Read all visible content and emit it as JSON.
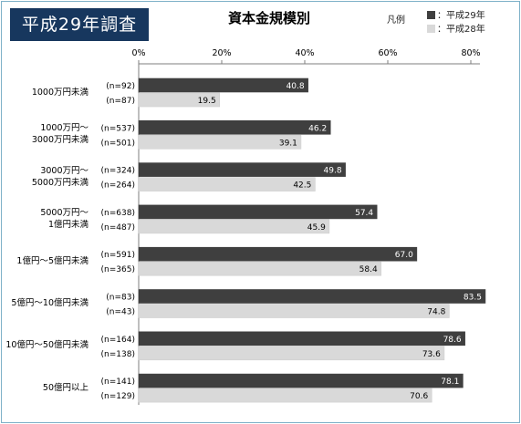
{
  "badge": "平成29年調査",
  "legend": {
    "title": "凡例",
    "items": [
      {
        "label": "：平成29年",
        "color": "#3f3f3f"
      },
      {
        "label": "：平成28年",
        "color": "#d9d9d9"
      }
    ]
  },
  "chart_data": {
    "type": "bar",
    "orientation": "horizontal",
    "title": "資本金規模別",
    "xlim": [
      0,
      80
    ],
    "ticks": [
      "0%",
      "20%",
      "40%",
      "60%",
      "80%"
    ],
    "tick_values": [
      0,
      20,
      40,
      60,
      80
    ],
    "grid": false,
    "legend_position": "top-right",
    "categories": [
      [
        "1000万円未満"
      ],
      [
        "1000万円～",
        "3000万円未満"
      ],
      [
        "3000万円～",
        "5000万円未満"
      ],
      [
        "5000万円～",
        "1億円未満"
      ],
      [
        "1億円～5億円未満"
      ],
      [
        "5億円～10億円未満"
      ],
      [
        "10億円～50億円未満"
      ],
      [
        "50億円以上"
      ]
    ],
    "series": [
      {
        "name": "平成29年",
        "color": "#3f3f3f",
        "values": [
          40.8,
          46.2,
          49.8,
          57.4,
          67.0,
          83.5,
          78.6,
          78.1
        ],
        "n": [
          "(n=92)",
          "(n=537)",
          "(n=324)",
          "(n=638)",
          "(n=591)",
          "(n=83)",
          "(n=164)",
          "(n=141)"
        ]
      },
      {
        "name": "平成28年",
        "color": "#d9d9d9",
        "values": [
          19.5,
          39.1,
          42.5,
          45.9,
          58.4,
          74.8,
          73.6,
          70.6
        ],
        "n": [
          "(n=87)",
          "(n=501)",
          "(n=264)",
          "(n=487)",
          "(n=365)",
          "(n=43)",
          "(n=138)",
          "(n=129)"
        ]
      }
    ]
  }
}
